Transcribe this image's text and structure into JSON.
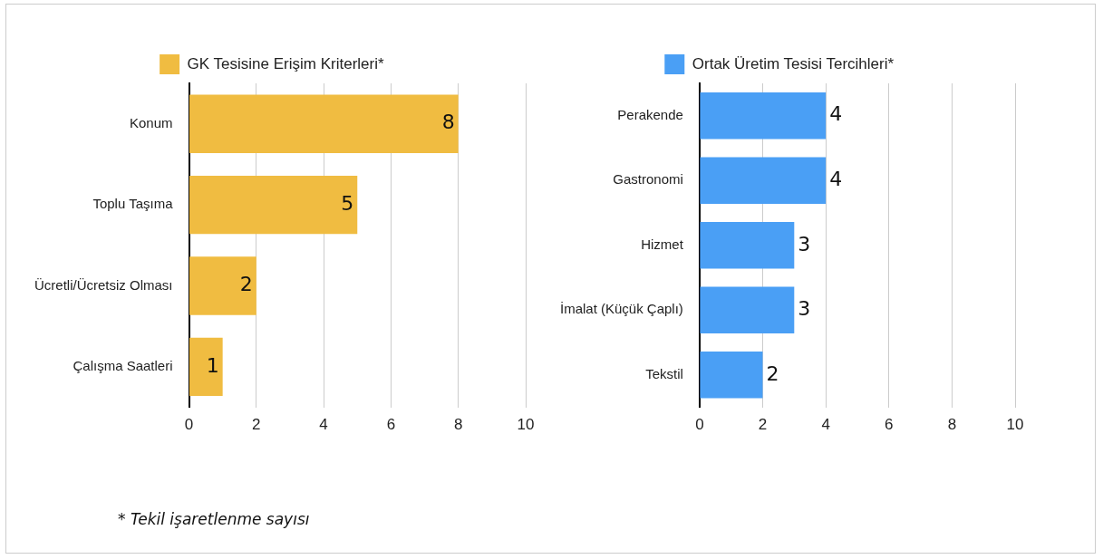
{
  "chart_data": [
    {
      "type": "bar",
      "orientation": "horizontal",
      "categories": [
        "Konum",
        "Toplu Taşıma",
        "Ücretli/Ücretsiz Olması",
        "Çalışma Saatleri"
      ],
      "series": [
        {
          "name": "GK Tesisine Erişim Kriterleri*",
          "color": "#f0bc41",
          "values": [
            8,
            5,
            2,
            1
          ]
        }
      ],
      "xlim": [
        0,
        10
      ],
      "xticks": [
        0,
        2,
        4,
        6,
        8,
        10
      ],
      "grid": "x",
      "legend": "top",
      "data_labels": true,
      "annotations": [
        "* Tekil işaretlenme sayısı"
      ]
    },
    {
      "type": "bar",
      "orientation": "horizontal",
      "categories": [
        "Perakende",
        "Gastronomi",
        "Hizmet",
        "İmalat (Küçük Çaplı)",
        "Tekstil"
      ],
      "series": [
        {
          "name": "Ortak Üretim Tesisi Tercihleri*",
          "color": "#4a9ff5",
          "values": [
            4,
            4,
            3,
            3,
            2
          ]
        }
      ],
      "xlim": [
        0,
        10
      ],
      "xticks": [
        0,
        2,
        4,
        6,
        8,
        10
      ],
      "grid": "x",
      "legend": "top",
      "data_labels": true
    }
  ]
}
